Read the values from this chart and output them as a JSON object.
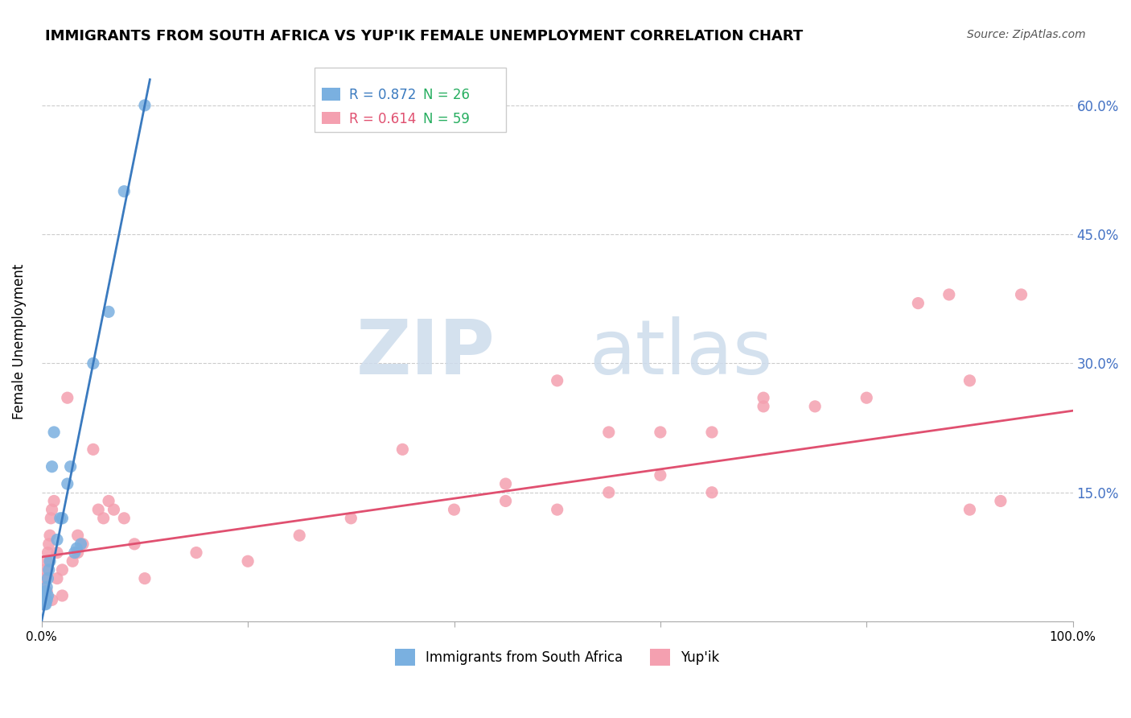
{
  "title": "IMMIGRANTS FROM SOUTH AFRICA VS YUP'IK FEMALE UNEMPLOYMENT CORRELATION CHART",
  "source": "Source: ZipAtlas.com",
  "ylabel": "Female Unemployment",
  "ytick_labels": [
    "",
    "15.0%",
    "30.0%",
    "45.0%",
    "60.0%"
  ],
  "ytick_values": [
    0,
    0.15,
    0.3,
    0.45,
    0.6
  ],
  "xlim": [
    0,
    1.0
  ],
  "ylim": [
    0,
    0.65
  ],
  "background_color": "#ffffff",
  "grid_color": "#cccccc",
  "legend_labels": [
    "Immigrants from South Africa",
    "Yup'ik"
  ],
  "blue_R": "R = 0.872",
  "blue_N": "N = 26",
  "pink_R": "R = 0.614",
  "pink_N": "N = 59",
  "blue_color": "#7ab0e0",
  "pink_color": "#f4a0b0",
  "blue_line_color": "#3a7abf",
  "pink_line_color": "#e05070",
  "rn_color": "#27ae60",
  "blue_scatter": [
    [
      0.001,
      0.02
    ],
    [
      0.002,
      0.025
    ],
    [
      0.003,
      0.03
    ],
    [
      0.003,
      0.02
    ],
    [
      0.004,
      0.035
    ],
    [
      0.004,
      0.02
    ],
    [
      0.005,
      0.04
    ],
    [
      0.005,
      0.025
    ],
    [
      0.006,
      0.03
    ],
    [
      0.006,
      0.05
    ],
    [
      0.007,
      0.06
    ],
    [
      0.008,
      0.07
    ],
    [
      0.01,
      0.18
    ],
    [
      0.012,
      0.22
    ],
    [
      0.015,
      0.095
    ],
    [
      0.018,
      0.12
    ],
    [
      0.02,
      0.12
    ],
    [
      0.025,
      0.16
    ],
    [
      0.028,
      0.18
    ],
    [
      0.032,
      0.08
    ],
    [
      0.034,
      0.085
    ],
    [
      0.038,
      0.09
    ],
    [
      0.05,
      0.3
    ],
    [
      0.065,
      0.36
    ],
    [
      0.08,
      0.5
    ],
    [
      0.1,
      0.6
    ]
  ],
  "pink_scatter": [
    [
      0.001,
      0.02
    ],
    [
      0.002,
      0.03
    ],
    [
      0.002,
      0.04
    ],
    [
      0.003,
      0.05
    ],
    [
      0.003,
      0.025
    ],
    [
      0.004,
      0.03
    ],
    [
      0.004,
      0.06
    ],
    [
      0.005,
      0.07
    ],
    [
      0.005,
      0.035
    ],
    [
      0.006,
      0.08
    ],
    [
      0.007,
      0.09
    ],
    [
      0.008,
      0.1
    ],
    [
      0.009,
      0.12
    ],
    [
      0.01,
      0.13
    ],
    [
      0.01,
      0.025
    ],
    [
      0.012,
      0.14
    ],
    [
      0.015,
      0.05
    ],
    [
      0.015,
      0.08
    ],
    [
      0.02,
      0.03
    ],
    [
      0.02,
      0.06
    ],
    [
      0.025,
      0.26
    ],
    [
      0.03,
      0.07
    ],
    [
      0.035,
      0.08
    ],
    [
      0.035,
      0.1
    ],
    [
      0.04,
      0.09
    ],
    [
      0.05,
      0.2
    ],
    [
      0.055,
      0.13
    ],
    [
      0.06,
      0.12
    ],
    [
      0.065,
      0.14
    ],
    [
      0.07,
      0.13
    ],
    [
      0.08,
      0.12
    ],
    [
      0.09,
      0.09
    ],
    [
      0.1,
      0.05
    ],
    [
      0.15,
      0.08
    ],
    [
      0.2,
      0.07
    ],
    [
      0.25,
      0.1
    ],
    [
      0.3,
      0.12
    ],
    [
      0.35,
      0.2
    ],
    [
      0.4,
      0.13
    ],
    [
      0.45,
      0.14
    ],
    [
      0.45,
      0.16
    ],
    [
      0.5,
      0.13
    ],
    [
      0.5,
      0.28
    ],
    [
      0.55,
      0.22
    ],
    [
      0.55,
      0.15
    ],
    [
      0.6,
      0.17
    ],
    [
      0.6,
      0.22
    ],
    [
      0.65,
      0.15
    ],
    [
      0.65,
      0.22
    ],
    [
      0.7,
      0.25
    ],
    [
      0.7,
      0.26
    ],
    [
      0.75,
      0.25
    ],
    [
      0.8,
      0.26
    ],
    [
      0.85,
      0.37
    ],
    [
      0.88,
      0.38
    ],
    [
      0.9,
      0.28
    ],
    [
      0.9,
      0.13
    ],
    [
      0.93,
      0.14
    ],
    [
      0.95,
      0.38
    ]
  ],
  "blue_line_x": [
    0,
    0.105
  ],
  "blue_line_y": [
    0.0,
    0.63
  ],
  "pink_line_x": [
    0,
    1.0
  ],
  "pink_line_y": [
    0.075,
    0.245
  ]
}
